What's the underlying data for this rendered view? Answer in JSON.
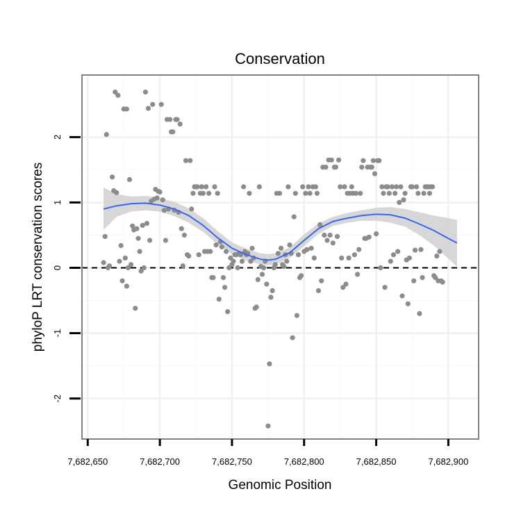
{
  "chart_data": {
    "type": "scatter",
    "title": "Conservation",
    "xlabel": "Genomic Position",
    "ylabel": "phyloP LRT conservation scores",
    "xlim": [
      7682646,
      7682921
    ],
    "ylim": [
      -2.62,
      2.95
    ],
    "x_ticks": [
      7682650,
      7682700,
      7682750,
      7682800,
      7682850,
      7682900
    ],
    "x_tick_labels": [
      "7,682,650",
      "7,682,700",
      "7,682,750",
      "7,682,800",
      "7,682,850",
      "7,682,900"
    ],
    "y_ticks": [
      -2,
      -1,
      0,
      1,
      2
    ],
    "y_tick_labels": [
      "-2",
      "-1",
      "0",
      "1",
      "2"
    ],
    "grid": true,
    "reference_line": {
      "y": 0,
      "style": "dashed"
    },
    "point_color": "#8c8c8c",
    "smooth_color": "#3366ff",
    "ribbon_color": "#d3d3d3",
    "points": [
      [
        7682661,
        0.08
      ],
      [
        7682662,
        0.48
      ],
      [
        7682663,
        2.04
      ],
      [
        7682664,
        0.0
      ],
      [
        7682665,
        0.03
      ],
      [
        7682667,
        1.39
      ],
      [
        7682668,
        1.18
      ],
      [
        7682669,
        2.69
      ],
      [
        7682670,
        1.15
      ],
      [
        7682671,
        2.64
      ],
      [
        7682672,
        0.1
      ],
      [
        7682673,
        0.34
      ],
      [
        7682674,
        -0.2
      ],
      [
        7682675,
        2.43
      ],
      [
        7682676,
        0.15
      ],
      [
        7682677,
        2.43
      ],
      [
        7682677,
        -0.28
      ],
      [
        7682678,
        0.0
      ],
      [
        7682679,
        1.35
      ],
      [
        7682680,
        0.05
      ],
      [
        7682681,
        0.64
      ],
      [
        7682682,
        0.58
      ],
      [
        7682683,
        -0.62
      ],
      [
        7682684,
        0.6
      ],
      [
        7682685,
        0.45
      ],
      [
        7682686,
        0.25
      ],
      [
        7682687,
        -0.05
      ],
      [
        7682688,
        0.65
      ],
      [
        7682689,
        0.0
      ],
      [
        7682690,
        2.69
      ],
      [
        7682691,
        0.68
      ],
      [
        7682692,
        2.44
      ],
      [
        7682693,
        0.42
      ],
      [
        7682694,
        1.02
      ],
      [
        7682695,
        2.5
      ],
      [
        7682696,
        1.05
      ],
      [
        7682697,
        1.2
      ],
      [
        7682698,
        1.07
      ],
      [
        7682699,
        1.17
      ],
      [
        7682700,
        1.16
      ],
      [
        7682701,
        2.5
      ],
      [
        7682702,
        1.04
      ],
      [
        7682703,
        0.88
      ],
      [
        7682704,
        0.42
      ],
      [
        7682705,
        2.27
      ],
      [
        7682706,
        0.9
      ],
      [
        7682707,
        2.27
      ],
      [
        7682708,
        2.08
      ],
      [
        7682709,
        2.08
      ],
      [
        7682710,
        0.88
      ],
      [
        7682711,
        2.27
      ],
      [
        7682712,
        2.27
      ],
      [
        7682713,
        0.85
      ],
      [
        7682714,
        2.2
      ],
      [
        7682715,
        0.6
      ],
      [
        7682716,
        0.03
      ],
      [
        7682717,
        0.5
      ],
      [
        7682718,
        1.64
      ],
      [
        7682719,
        0.2
      ],
      [
        7682720,
        0.18
      ],
      [
        7682721,
        1.64
      ],
      [
        7682722,
        0.9
      ],
      [
        7682723,
        1.14
      ],
      [
        7682724,
        1.24
      ],
      [
        7682725,
        1.24
      ],
      [
        7682726,
        1.24
      ],
      [
        7682727,
        0.2
      ],
      [
        7682728,
        1.14
      ],
      [
        7682729,
        1.24
      ],
      [
        7682730,
        1.14
      ],
      [
        7682731,
        0.25
      ],
      [
        7682732,
        1.24
      ],
      [
        7682733,
        0.25
      ],
      [
        7682734,
        1.14
      ],
      [
        7682735,
        0.25
      ],
      [
        7682736,
        -0.15
      ],
      [
        7682737,
        -0.15
      ],
      [
        7682738,
        1.24
      ],
      [
        7682739,
        0.35
      ],
      [
        7682740,
        1.14
      ],
      [
        7682741,
        -0.48
      ],
      [
        7682742,
        0.4
      ],
      [
        7682743,
        0.32
      ],
      [
        7682744,
        -0.15
      ],
      [
        7682745,
        -0.3
      ],
      [
        7682746,
        0.25
      ],
      [
        7682747,
        -0.67
      ],
      [
        7682748,
        0.0
      ],
      [
        7682749,
        0.15
      ],
      [
        7682750,
        0.05
      ],
      [
        7682751,
        0.1
      ],
      [
        7682752,
        0.2
      ],
      [
        7682753,
        0.2
      ],
      [
        7682754,
        0.0
      ],
      [
        7682755,
        0.22
      ],
      [
        7682756,
        0.2
      ],
      [
        7682757,
        0.1
      ],
      [
        7682758,
        1.24
      ],
      [
        7682759,
        0.25
      ],
      [
        7682760,
        0.2
      ],
      [
        7682761,
        0.22
      ],
      [
        7682762,
        1.14
      ],
      [
        7682763,
        0.1
      ],
      [
        7682764,
        0.3
      ],
      [
        7682765,
        0.15
      ],
      [
        7682766,
        -0.62
      ],
      [
        7682767,
        -0.6
      ],
      [
        7682768,
        -0.18
      ],
      [
        7682769,
        1.24
      ],
      [
        7682770,
        0.02
      ],
      [
        7682771,
        -0.1
      ],
      [
        7682772,
        0.0
      ],
      [
        7682773,
        0.1
      ],
      [
        7682774,
        -0.25
      ],
      [
        7682775,
        -2.42
      ],
      [
        7682776,
        -1.47
      ],
      [
        7682777,
        -0.45
      ],
      [
        7682778,
        -0.35
      ],
      [
        7682779,
        0.0
      ],
      [
        7682780,
        0.05
      ],
      [
        7682781,
        1.14
      ],
      [
        7682782,
        0.22
      ],
      [
        7682783,
        1.14
      ],
      [
        7682784,
        0.3
      ],
      [
        7682785,
        0.05
      ],
      [
        7682786,
        0.02
      ],
      [
        7682787,
        0.2
      ],
      [
        7682788,
        0.1
      ],
      [
        7682789,
        1.24
      ],
      [
        7682790,
        0.35
      ],
      [
        7682791,
        0.22
      ],
      [
        7682792,
        -1.07
      ],
      [
        7682793,
        0.78
      ],
      [
        7682794,
        1.14
      ],
      [
        7682795,
        -0.73
      ],
      [
        7682796,
        0.2
      ],
      [
        7682797,
        -0.15
      ],
      [
        7682798,
        -0.12
      ],
      [
        7682799,
        1.24
      ],
      [
        7682800,
        0.25
      ],
      [
        7682801,
        1.14
      ],
      [
        7682802,
        0.28
      ],
      [
        7682803,
        1.24
      ],
      [
        7682804,
        1.14
      ],
      [
        7682805,
        0.3
      ],
      [
        7682806,
        1.24
      ],
      [
        7682807,
        0.15
      ],
      [
        7682808,
        1.24
      ],
      [
        7682809,
        1.14
      ],
      [
        7682810,
        -0.35
      ],
      [
        7682811,
        0.66
      ],
      [
        7682812,
        -0.2
      ],
      [
        7682813,
        1.54
      ],
      [
        7682814,
        0.5
      ],
      [
        7682815,
        1.54
      ],
      [
        7682816,
        0.42
      ],
      [
        7682817,
        1.65
      ],
      [
        7682818,
        0.5
      ],
      [
        7682819,
        1.65
      ],
      [
        7682820,
        0.38
      ],
      [
        7682821,
        1.54
      ],
      [
        7682822,
        1.54
      ],
      [
        7682823,
        0.48
      ],
      [
        7682824,
        1.65
      ],
      [
        7682825,
        1.24
      ],
      [
        7682826,
        0.15
      ],
      [
        7682827,
        -0.3
      ],
      [
        7682828,
        1.24
      ],
      [
        7682829,
        -0.25
      ],
      [
        7682830,
        1.14
      ],
      [
        7682831,
        0.15
      ],
      [
        7682832,
        1.14
      ],
      [
        7682833,
        1.24
      ],
      [
        7682834,
        1.14
      ],
      [
        7682835,
        0.2
      ],
      [
        7682836,
        1.14
      ],
      [
        7682837,
        -0.1
      ],
      [
        7682838,
        0.28
      ],
      [
        7682839,
        1.14
      ],
      [
        7682840,
        1.54
      ],
      [
        7682841,
        1.64
      ],
      [
        7682842,
        0.45
      ],
      [
        7682843,
        0.45
      ],
      [
        7682844,
        1.54
      ],
      [
        7682845,
        0.47
      ],
      [
        7682846,
        1.54
      ],
      [
        7682847,
        1.54
      ],
      [
        7682848,
        1.64
      ],
      [
        7682849,
        1.44
      ],
      [
        7682850,
        0.52
      ],
      [
        7682851,
        1.64
      ],
      [
        7682852,
        1.64
      ],
      [
        7682853,
        0.0
      ],
      [
        7682854,
        1.24
      ],
      [
        7682855,
        1.14
      ],
      [
        7682856,
        -0.3
      ],
      [
        7682857,
        1.24
      ],
      [
        7682858,
        1.24
      ],
      [
        7682859,
        1.14
      ],
      [
        7682860,
        0.1
      ],
      [
        7682861,
        1.24
      ],
      [
        7682862,
        0.2
      ],
      [
        7682863,
        1.14
      ],
      [
        7682864,
        1.24
      ],
      [
        7682865,
        0.25
      ],
      [
        7682866,
        1.0
      ],
      [
        7682867,
        1.24
      ],
      [
        7682868,
        -0.43
      ],
      [
        7682869,
        1.04
      ],
      [
        7682870,
        1.14
      ],
      [
        7682871,
        0.12
      ],
      [
        7682872,
        -0.55
      ],
      [
        7682873,
        0.15
      ],
      [
        7682874,
        1.24
      ],
      [
        7682875,
        1.24
      ],
      [
        7682876,
        -0.2
      ],
      [
        7682877,
        0.27
      ],
      [
        7682878,
        1.24
      ],
      [
        7682879,
        1.14
      ],
      [
        7682880,
        -0.7
      ],
      [
        7682881,
        0.28
      ],
      [
        7682882,
        -0.15
      ],
      [
        7682883,
        1.14
      ],
      [
        7682884,
        1.24
      ],
      [
        7682885,
        1.24
      ],
      [
        7682886,
        1.24
      ],
      [
        7682887,
        1.14
      ],
      [
        7682888,
        1.24
      ],
      [
        7682889,
        1.24
      ],
      [
        7682890,
        -0.12
      ],
      [
        7682891,
        -0.15
      ],
      [
        7682892,
        0.18
      ],
      [
        7682893,
        -0.2
      ],
      [
        7682894,
        0.25
      ],
      [
        7682895,
        -0.2
      ],
      [
        7682896,
        -0.22
      ]
    ],
    "smooth": {
      "x": [
        7682661,
        7682670,
        7682680,
        7682690,
        7682700,
        7682710,
        7682720,
        7682730,
        7682740,
        7682750,
        7682760,
        7682770,
        7682775,
        7682780,
        7682790,
        7682800,
        7682810,
        7682820,
        7682830,
        7682840,
        7682850,
        7682860,
        7682870,
        7682880,
        7682890,
        7682900,
        7682906
      ],
      "y": [
        0.9,
        0.95,
        0.98,
        0.99,
        0.96,
        0.9,
        0.8,
        0.65,
        0.46,
        0.3,
        0.2,
        0.13,
        0.12,
        0.13,
        0.23,
        0.42,
        0.6,
        0.71,
        0.76,
        0.8,
        0.82,
        0.81,
        0.76,
        0.67,
        0.57,
        0.45,
        0.38
      ],
      "lower": [
        0.58,
        0.78,
        0.86,
        0.88,
        0.86,
        0.79,
        0.69,
        0.55,
        0.36,
        0.21,
        0.11,
        0.05,
        0.04,
        0.05,
        0.15,
        0.33,
        0.52,
        0.64,
        0.69,
        0.72,
        0.72,
        0.69,
        0.63,
        0.5,
        0.34,
        0.14,
        0.02
      ],
      "upper": [
        1.23,
        1.13,
        1.09,
        1.1,
        1.07,
        1.01,
        0.91,
        0.76,
        0.56,
        0.39,
        0.29,
        0.22,
        0.21,
        0.22,
        0.31,
        0.51,
        0.68,
        0.78,
        0.84,
        0.88,
        0.92,
        0.93,
        0.9,
        0.85,
        0.8,
        0.76,
        0.73
      ]
    }
  }
}
